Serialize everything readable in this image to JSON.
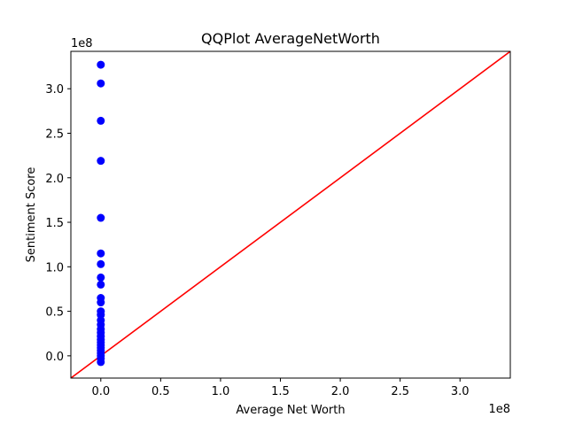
{
  "chart_data": {
    "type": "scatter",
    "title": "QQPlot AverageNetWorth",
    "xlabel": "Average Net Worth",
    "ylabel": "Sentiment Score",
    "x_offset_label": "1e8",
    "y_offset_label": "1e8",
    "xlim": [
      -0.25,
      3.42
    ],
    "ylim": [
      -0.25,
      3.42
    ],
    "xticks": [
      0.0,
      0.5,
      1.0,
      1.5,
      2.0,
      2.5,
      3.0
    ],
    "xtick_labels": [
      "0.0",
      "0.5",
      "1.0",
      "1.5",
      "2.0",
      "2.5",
      "3.0"
    ],
    "yticks": [
      0.0,
      0.5,
      1.0,
      1.5,
      2.0,
      2.5,
      3.0
    ],
    "ytick_labels": [
      "0.0",
      "0.5",
      "1.0",
      "1.5",
      "2.0",
      "2.5",
      "3.0"
    ],
    "grid": false,
    "series": [
      {
        "marker_color": "#0000ff",
        "points": [
          [
            0.0,
            3.27
          ],
          [
            0.0,
            3.06
          ],
          [
            0.0,
            2.64
          ],
          [
            0.0,
            2.19
          ],
          [
            0.0,
            1.55
          ],
          [
            0.0,
            1.15
          ],
          [
            0.0,
            1.03
          ],
          [
            0.0,
            0.88
          ],
          [
            0.0,
            0.8
          ],
          [
            0.0,
            0.65
          ],
          [
            0.0,
            0.6
          ],
          [
            0.0,
            0.5
          ],
          [
            0.0,
            0.46
          ],
          [
            0.0,
            0.4
          ],
          [
            0.0,
            0.35
          ],
          [
            0.0,
            0.3
          ],
          [
            0.0,
            0.26
          ],
          [
            0.0,
            0.22
          ],
          [
            0.0,
            0.18
          ],
          [
            0.0,
            0.15
          ],
          [
            0.0,
            0.12
          ],
          [
            0.0,
            0.09
          ],
          [
            0.0,
            0.06
          ],
          [
            0.0,
            0.03
          ],
          [
            0.0,
            0.0
          ],
          [
            0.0,
            -0.03
          ],
          [
            0.0,
            -0.07
          ]
        ]
      }
    ],
    "reference_line": {
      "color": "#ff0000",
      "points": [
        [
          -0.25,
          -0.25
        ],
        [
          3.42,
          3.42
        ]
      ]
    }
  }
}
